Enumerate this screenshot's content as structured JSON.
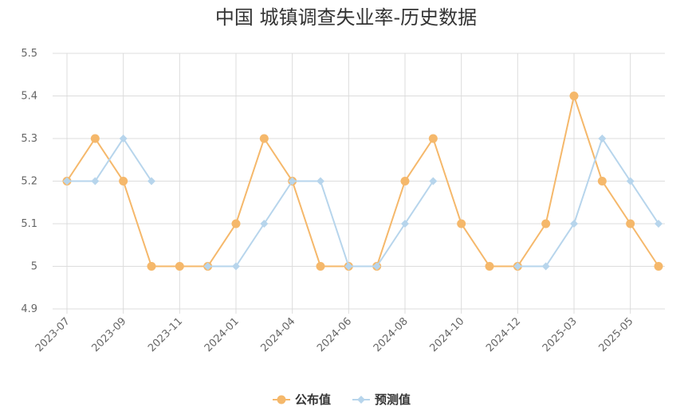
{
  "chart_data": {
    "type": "line",
    "title": "中国 城镇调查失业率-历史数据",
    "xlabel": "",
    "ylabel": "",
    "ylim": [
      4.9,
      5.5
    ],
    "yticks": [
      "4.9",
      "5",
      "5.1",
      "5.2",
      "5.3",
      "5.4",
      "5.5"
    ],
    "ytick_values": [
      4.9,
      5.0,
      5.1,
      5.2,
      5.3,
      5.4,
      5.5
    ],
    "x": [
      "2023-07",
      "2023-08",
      "2023-09",
      "2023-10",
      "2023-11",
      "2023-12",
      "2024-01",
      "2024-03",
      "2024-04",
      "2024-05",
      "2024-06",
      "2024-07",
      "2024-08",
      "2024-09",
      "2024-10",
      "2024-11",
      "2024-12",
      "2025-02",
      "2025-03",
      "2025-04",
      "2025-05",
      "2025-06"
    ],
    "xtick_labels": [
      {
        "index": 0,
        "label": "2023-07"
      },
      {
        "index": 2,
        "label": "2023-09"
      },
      {
        "index": 4,
        "label": "2023-11"
      },
      {
        "index": 6,
        "label": "2024-01"
      },
      {
        "index": 8,
        "label": "2024-04"
      },
      {
        "index": 10,
        "label": "2024-06"
      },
      {
        "index": 12,
        "label": "2024-08"
      },
      {
        "index": 14,
        "label": "2024-10"
      },
      {
        "index": 16,
        "label": "2024-12"
      },
      {
        "index": 18,
        "label": "2025-03"
      },
      {
        "index": 20,
        "label": "2025-05"
      }
    ],
    "series": [
      {
        "name": "公布值",
        "color": "#f5b86b",
        "marker": "circle",
        "values": [
          5.2,
          5.3,
          5.2,
          5.0,
          5.0,
          5.0,
          5.1,
          5.3,
          5.2,
          5.0,
          5.0,
          5.0,
          5.2,
          5.3,
          5.1,
          5.0,
          5.0,
          5.1,
          5.4,
          5.2,
          5.1,
          5.0
        ]
      },
      {
        "name": "预测值",
        "color": "#b7d5ec",
        "marker": "diamond",
        "values": [
          5.2,
          5.2,
          5.3,
          5.2,
          null,
          5.0,
          5.0,
          5.1,
          5.2,
          5.2,
          5.0,
          5.0,
          5.1,
          5.2,
          null,
          null,
          5.0,
          5.0,
          5.1,
          5.3,
          5.2,
          5.1
        ]
      }
    ],
    "grid": true,
    "legend_position": "bottom-center"
  }
}
